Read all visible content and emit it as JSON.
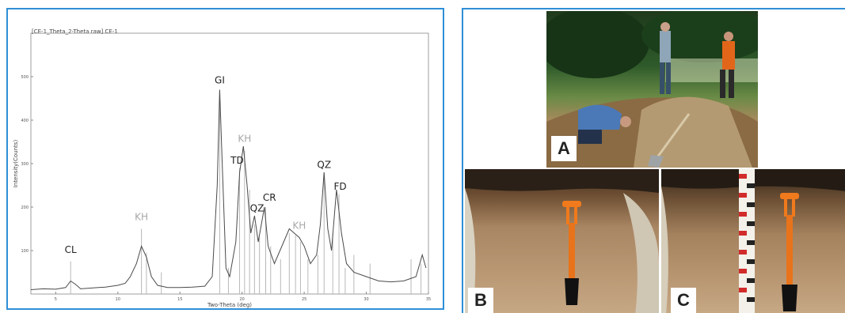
{
  "chart_data": {
    "type": "line",
    "title": "[CE-1_Theta_2-Theta raw] CE-1",
    "xlabel": "Two-Theta (deg)",
    "ylabel": "Intensity(Counts)",
    "xlim": [
      3,
      35
    ],
    "ylim": [
      0,
      600
    ],
    "x_ticks": [
      "5",
      "10",
      "15",
      "20",
      "25",
      "30",
      "35"
    ],
    "y_ticks": [
      "100",
      "200",
      "300",
      "400",
      "500"
    ],
    "grid": false,
    "series": [
      {
        "values": [
          [
            3.0,
            10
          ],
          [
            4.0,
            12
          ],
          [
            5.0,
            11
          ],
          [
            5.8,
            15
          ],
          [
            6.2,
            30
          ],
          [
            6.6,
            22
          ],
          [
            7.0,
            12
          ],
          [
            8.0,
            14
          ],
          [
            9.0,
            16
          ],
          [
            10.0,
            20
          ],
          [
            10.6,
            25
          ],
          [
            11.0,
            40
          ],
          [
            11.5,
            70
          ],
          [
            11.9,
            110
          ],
          [
            12.3,
            85
          ],
          [
            12.7,
            40
          ],
          [
            13.2,
            20
          ],
          [
            14.0,
            15
          ],
          [
            15.0,
            15
          ],
          [
            16.0,
            16
          ],
          [
            17.0,
            18
          ],
          [
            17.6,
            40
          ],
          [
            18.0,
            250
          ],
          [
            18.2,
            470
          ],
          [
            18.4,
            300
          ],
          [
            18.7,
            60
          ],
          [
            19.0,
            40
          ],
          [
            19.5,
            120
          ],
          [
            19.8,
            280
          ],
          [
            20.1,
            340
          ],
          [
            20.4,
            250
          ],
          [
            20.7,
            140
          ],
          [
            21.0,
            180
          ],
          [
            21.3,
            120
          ],
          [
            21.8,
            200
          ],
          [
            22.1,
            110
          ],
          [
            22.6,
            70
          ],
          [
            23.2,
            110
          ],
          [
            23.8,
            150
          ],
          [
            24.2,
            140
          ],
          [
            24.6,
            130
          ],
          [
            25.0,
            110
          ],
          [
            25.5,
            70
          ],
          [
            26.0,
            90
          ],
          [
            26.3,
            160
          ],
          [
            26.6,
            280
          ],
          [
            26.9,
            150
          ],
          [
            27.2,
            100
          ],
          [
            27.6,
            240
          ],
          [
            28.0,
            140
          ],
          [
            28.4,
            70
          ],
          [
            29.0,
            50
          ],
          [
            30.0,
            40
          ],
          [
            31.0,
            30
          ],
          [
            32.0,
            28
          ],
          [
            33.0,
            30
          ],
          [
            34.0,
            40
          ],
          [
            34.5,
            90
          ],
          [
            34.8,
            60
          ]
        ]
      }
    ],
    "annotations": [
      {
        "text": "CL",
        "x": 6.2,
        "y": 95,
        "color": "#222222"
      },
      {
        "text": "KH",
        "x": 11.9,
        "y": 170,
        "color": "#a8a8a8"
      },
      {
        "text": "GI",
        "x": 18.2,
        "y": 485,
        "color": "#222222"
      },
      {
        "text": "KH",
        "x": 20.2,
        "y": 350,
        "color": "#a8a8a8"
      },
      {
        "text": "TD",
        "x": 19.6,
        "y": 300,
        "color": "#222222"
      },
      {
        "text": "QZ",
        "x": 21.2,
        "y": 190,
        "color": "#222222"
      },
      {
        "text": "CR",
        "x": 22.2,
        "y": 215,
        "color": "#222222"
      },
      {
        "text": "KH",
        "x": 24.6,
        "y": 150,
        "color": "#a8a8a8"
      },
      {
        "text": "QZ",
        "x": 26.6,
        "y": 290,
        "color": "#222222"
      },
      {
        "text": "FD",
        "x": 27.9,
        "y": 240,
        "color": "#222222"
      }
    ],
    "reference_lines": [
      {
        "x": 6.2,
        "h": 75
      },
      {
        "x": 11.9,
        "h": 150
      },
      {
        "x": 12.3,
        "h": 95
      },
      {
        "x": 13.5,
        "h": 50
      },
      {
        "x": 18.2,
        "h": 470
      },
      {
        "x": 18.9,
        "h": 60
      },
      {
        "x": 19.8,
        "h": 290
      },
      {
        "x": 20.2,
        "h": 330
      },
      {
        "x": 20.6,
        "h": 240
      },
      {
        "x": 21.0,
        "h": 160
      },
      {
        "x": 21.4,
        "h": 130
      },
      {
        "x": 21.9,
        "h": 200
      },
      {
        "x": 22.3,
        "h": 110
      },
      {
        "x": 23.1,
        "h": 80
      },
      {
        "x": 23.8,
        "h": 140
      },
      {
        "x": 24.3,
        "h": 135
      },
      {
        "x": 24.7,
        "h": 120
      },
      {
        "x": 25.3,
        "h": 80
      },
      {
        "x": 26.1,
        "h": 90
      },
      {
        "x": 26.6,
        "h": 280
      },
      {
        "x": 27.3,
        "h": 140
      },
      {
        "x": 27.8,
        "h": 230
      },
      {
        "x": 28.3,
        "h": 60
      },
      {
        "x": 29.0,
        "h": 90
      },
      {
        "x": 30.3,
        "h": 70
      },
      {
        "x": 33.6,
        "h": 80
      },
      {
        "x": 34.4,
        "h": 70
      }
    ]
  },
  "photos": [
    {
      "label": "A"
    },
    {
      "label": "B"
    },
    {
      "label": "C"
    }
  ]
}
